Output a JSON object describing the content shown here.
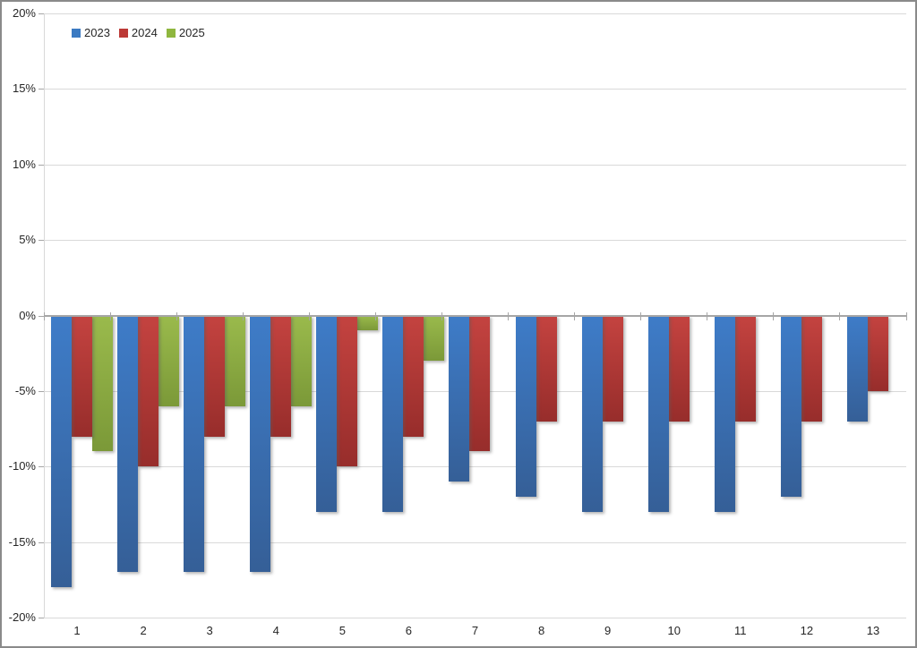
{
  "chart_data": {
    "type": "bar",
    "title": "",
    "categories": [
      "1",
      "2",
      "3",
      "4",
      "5",
      "6",
      "7",
      "8",
      "9",
      "10",
      "11",
      "12",
      "13"
    ],
    "series": [
      {
        "name": "2023",
        "legend_color": "#3b7ac2",
        "gradient_top": "#3e7cc8",
        "gradient_bottom": "#355f97",
        "values": [
          -18,
          -17,
          -17,
          -17,
          -13,
          -13,
          -11,
          -12,
          -13,
          -13,
          -13,
          -12,
          -7
        ]
      },
      {
        "name": "2024",
        "legend_color": "#bc3936",
        "gradient_top": "#c44340",
        "gradient_bottom": "#972d2b",
        "values": [
          -8,
          -10,
          -8,
          -8,
          -10,
          -8,
          -9,
          -7,
          -7,
          -7,
          -7,
          -7,
          -5
        ]
      },
      {
        "name": "2025",
        "legend_color": "#8fb73f",
        "gradient_top": "#9aba4c",
        "gradient_bottom": "#7b9938",
        "values": [
          -9,
          -6,
          -6,
          -6,
          -1,
          -3,
          null,
          null,
          null,
          null,
          null,
          null,
          null
        ]
      }
    ],
    "ylim": [
      -20,
      20
    ],
    "ytick_step": 5,
    "ytick_labels": [
      "20%",
      "15%",
      "10%",
      "5%",
      "0%",
      "-5%",
      "-10%",
      "-15%",
      "-20%"
    ],
    "grid": true,
    "legend_position": "top-left",
    "unit": "%"
  },
  "colors": {
    "grid": "#d9d9d9",
    "zero_axis": "#a6a6a6",
    "frame_border": "#8a8a8a",
    "text": "#262626",
    "background": "#ffffff"
  }
}
